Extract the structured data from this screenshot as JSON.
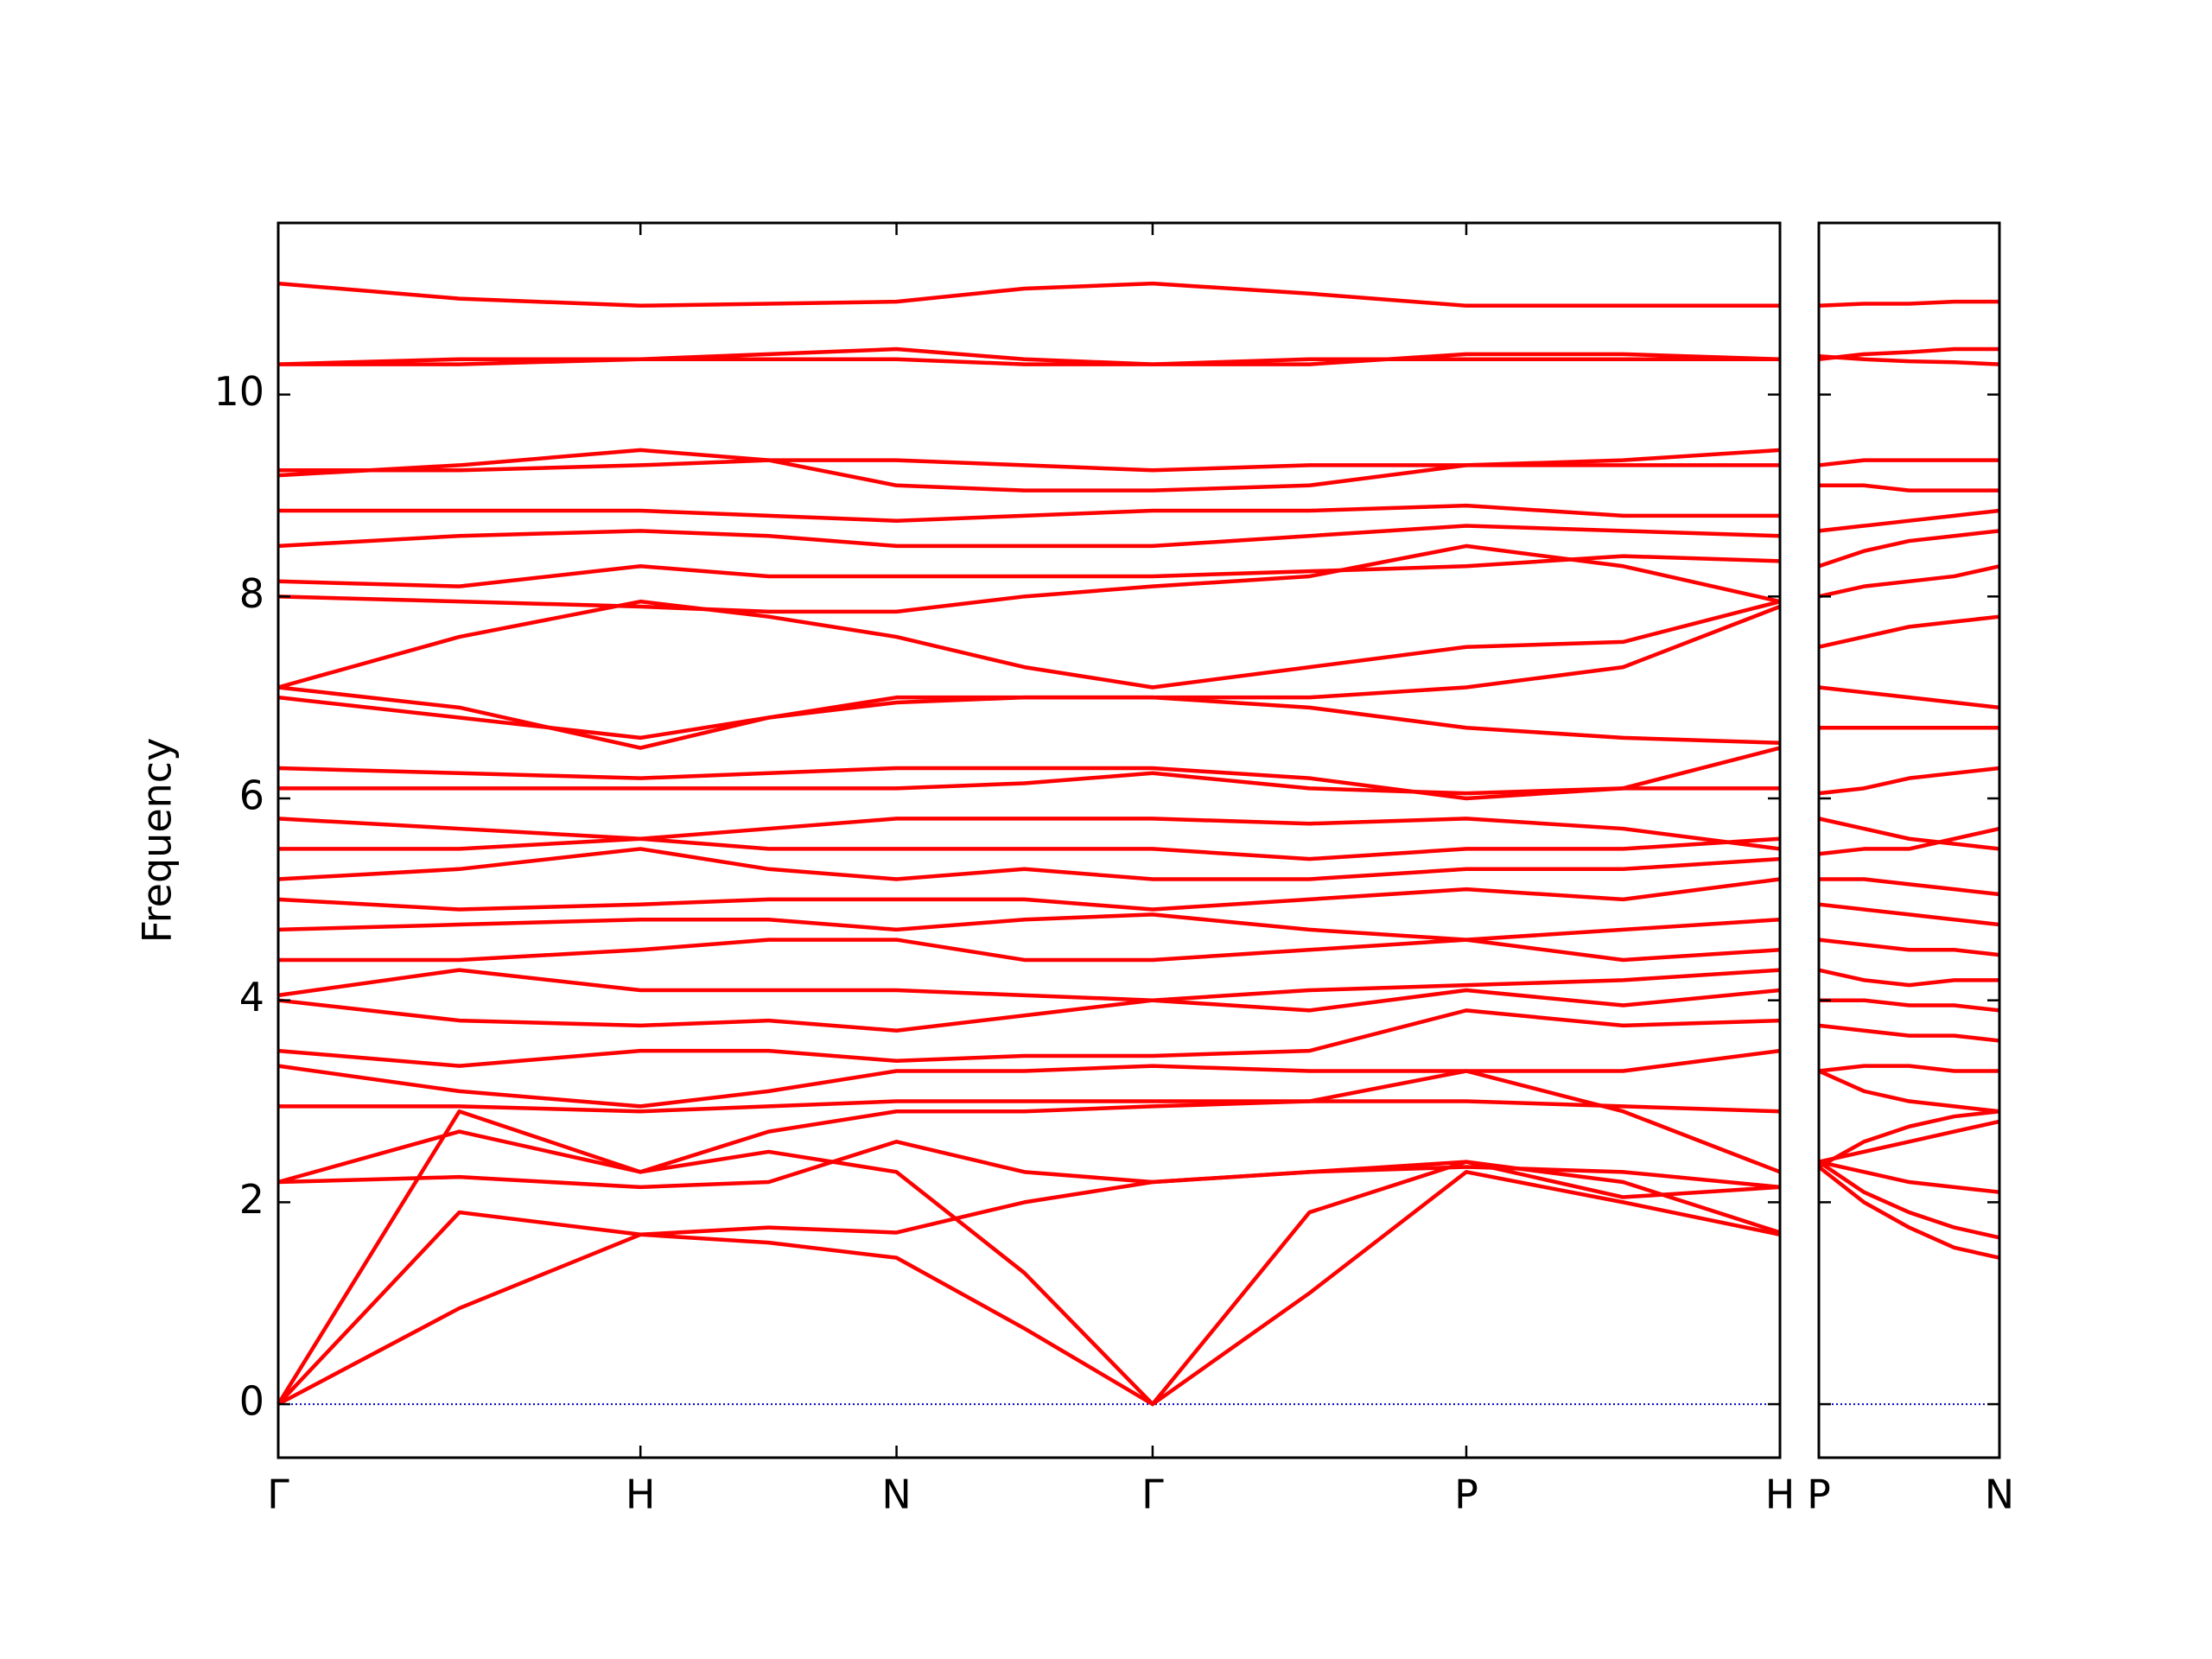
{
  "chart_data": [
    {
      "type": "line",
      "ylabel": "Frequency",
      "color": "#ff0000",
      "hline": 0,
      "hline_color": "#0000cc",
      "xlim": [
        0,
        4.146
      ],
      "ylim": [
        -0.53,
        11.7
      ],
      "yticks": [
        0,
        2,
        4,
        6,
        8,
        10
      ],
      "ytick_labels": true,
      "xticks": [
        {
          "value": 0,
          "label": "Γ"
        },
        {
          "value": 1,
          "label": "H"
        },
        {
          "value": 1.707,
          "label": "N"
        },
        {
          "value": 2.414,
          "label": "Γ"
        },
        {
          "value": 3.28,
          "label": "P"
        },
        {
          "value": 4.146,
          "label": "H"
        }
      ],
      "x": [
        0,
        0.5,
        1,
        1.354,
        1.707,
        2.06,
        2.414,
        2.847,
        3.28,
        3.713,
        4.146
      ],
      "series": [
        {
          "values": [
            0,
            0.95,
            1.68,
            1.6,
            1.45,
            0.75,
            0,
            1.1,
            2.3,
            2.0,
            1.68
          ]
        },
        {
          "values": [
            0,
            1.9,
            1.68,
            1.75,
            1.7,
            2.0,
            2.2,
            2.3,
            2.35,
            2.3,
            2.15
          ]
        },
        {
          "values": [
            0,
            2.9,
            2.3,
            2.5,
            2.3,
            1.3,
            0,
            1.9,
            2.4,
            2.2,
            1.7
          ]
        },
        {
          "values": [
            2.2,
            2.25,
            2.15,
            2.2,
            2.6,
            2.3,
            2.2,
            2.3,
            2.4,
            2.05,
            2.15
          ]
        },
        {
          "values": [
            2.2,
            2.7,
            2.3,
            2.7,
            2.9,
            2.9,
            2.95,
            3.0,
            3.3,
            2.9,
            2.3
          ]
        },
        {
          "values": [
            2.95,
            2.95,
            2.9,
            2.95,
            3.0,
            3.0,
            3.0,
            3.0,
            3.0,
            2.95,
            2.9
          ]
        },
        {
          "values": [
            3.35,
            3.1,
            2.95,
            3.1,
            3.3,
            3.3,
            3.35,
            3.3,
            3.3,
            3.3,
            3.5
          ]
        },
        {
          "values": [
            3.5,
            3.35,
            3.5,
            3.5,
            3.4,
            3.45,
            3.45,
            3.5,
            3.9,
            3.75,
            3.8
          ]
        },
        {
          "values": [
            4.0,
            3.8,
            3.75,
            3.8,
            3.7,
            3.85,
            4.0,
            3.9,
            4.1,
            3.95,
            4.1
          ]
        },
        {
          "values": [
            4.05,
            4.3,
            4.1,
            4.1,
            4.1,
            4.05,
            4.0,
            4.1,
            4.15,
            4.2,
            4.3
          ]
        },
        {
          "values": [
            4.4,
            4.4,
            4.5,
            4.6,
            4.6,
            4.4,
            4.4,
            4.5,
            4.6,
            4.4,
            4.5
          ]
        },
        {
          "values": [
            4.7,
            4.75,
            4.8,
            4.8,
            4.7,
            4.8,
            4.85,
            4.7,
            4.6,
            4.7,
            4.8
          ]
        },
        {
          "values": [
            5.0,
            4.9,
            4.95,
            5.0,
            5.0,
            5.0,
            4.9,
            5.0,
            5.1,
            5.0,
            5.2
          ]
        },
        {
          "values": [
            5.2,
            5.3,
            5.5,
            5.3,
            5.2,
            5.3,
            5.2,
            5.2,
            5.3,
            5.3,
            5.4
          ]
        },
        {
          "values": [
            5.5,
            5.5,
            5.6,
            5.5,
            5.5,
            5.5,
            5.5,
            5.4,
            5.5,
            5.5,
            5.6
          ]
        },
        {
          "values": [
            5.8,
            5.7,
            5.6,
            5.7,
            5.8,
            5.8,
            5.8,
            5.75,
            5.8,
            5.7,
            5.5
          ]
        },
        {
          "values": [
            6.1,
            6.1,
            6.1,
            6.1,
            6.1,
            6.15,
            6.25,
            6.1,
            6.05,
            6.1,
            6.1
          ]
        },
        {
          "values": [
            6.3,
            6.25,
            6.2,
            6.25,
            6.3,
            6.3,
            6.3,
            6.2,
            6.0,
            6.1,
            6.5
          ]
        },
        {
          "values": [
            7.0,
            6.8,
            6.6,
            6.8,
            6.95,
            7.0,
            7.0,
            6.9,
            6.7,
            6.6,
            6.55
          ]
        },
        {
          "values": [
            7.1,
            6.9,
            6.5,
            6.8,
            7.0,
            7.0,
            7.0,
            7.0,
            7.1,
            7.3,
            7.9
          ]
        },
        {
          "values": [
            7.1,
            7.6,
            7.95,
            7.8,
            7.6,
            7.3,
            7.1,
            7.3,
            7.5,
            7.55,
            7.95
          ]
        },
        {
          "values": [
            8.0,
            7.95,
            7.9,
            7.85,
            7.85,
            8.0,
            8.1,
            8.2,
            8.5,
            8.3,
            7.95
          ]
        },
        {
          "values": [
            8.15,
            8.1,
            8.3,
            8.2,
            8.2,
            8.2,
            8.2,
            8.25,
            8.3,
            8.4,
            8.35
          ]
        },
        {
          "values": [
            8.5,
            8.6,
            8.65,
            8.6,
            8.5,
            8.5,
            8.5,
            8.6,
            8.7,
            8.65,
            8.6
          ]
        },
        {
          "values": [
            8.85,
            8.85,
            8.85,
            8.8,
            8.75,
            8.8,
            8.85,
            8.85,
            8.9,
            8.8,
            8.8
          ]
        },
        {
          "values": [
            9.2,
            9.3,
            9.45,
            9.35,
            9.1,
            9.05,
            9.05,
            9.1,
            9.3,
            9.35,
            9.45
          ]
        },
        {
          "values": [
            9.25,
            9.25,
            9.3,
            9.35,
            9.35,
            9.3,
            9.25,
            9.3,
            9.3,
            9.3,
            9.3
          ]
        },
        {
          "values": [
            10.3,
            10.35,
            10.35,
            10.4,
            10.45,
            10.35,
            10.3,
            10.35,
            10.35,
            10.35,
            10.35
          ]
        },
        {
          "values": [
            10.3,
            10.3,
            10.35,
            10.35,
            10.35,
            10.3,
            10.3,
            10.3,
            10.4,
            10.4,
            10.35
          ]
        },
        {
          "values": [
            11.1,
            10.95,
            10.88,
            10.9,
            10.92,
            11.05,
            11.1,
            11.0,
            10.88,
            10.88,
            10.88
          ]
        }
      ]
    },
    {
      "type": "line",
      "color": "#ff0000",
      "hline": 0,
      "hline_color": "#0000cc",
      "xlim": [
        0,
        0.5
      ],
      "ylim": [
        -0.53,
        11.7
      ],
      "yticks": [
        0,
        2,
        4,
        6,
        8,
        10
      ],
      "ytick_labels": false,
      "xticks": [
        {
          "value": 0,
          "label": "P"
        },
        {
          "value": 0.5,
          "label": "N"
        }
      ],
      "x": [
        0,
        0.125,
        0.25,
        0.375,
        0.5
      ],
      "series": [
        {
          "values": [
            2.35,
            2.0,
            1.75,
            1.55,
            1.45
          ]
        },
        {
          "values": [
            2.4,
            2.1,
            1.9,
            1.75,
            1.65
          ]
        },
        {
          "values": [
            2.4,
            2.3,
            2.2,
            2.15,
            2.1
          ]
        },
        {
          "values": [
            2.4,
            2.5,
            2.6,
            2.7,
            2.8
          ]
        },
        {
          "values": [
            2.35,
            2.6,
            2.75,
            2.85,
            2.9
          ]
        },
        {
          "values": [
            3.3,
            3.1,
            3.0,
            2.95,
            2.9
          ]
        },
        {
          "values": [
            3.3,
            3.35,
            3.35,
            3.3,
            3.3
          ]
        },
        {
          "values": [
            3.75,
            3.7,
            3.65,
            3.65,
            3.6
          ]
        },
        {
          "values": [
            4.0,
            4.0,
            3.95,
            3.95,
            3.9
          ]
        },
        {
          "values": [
            4.3,
            4.2,
            4.15,
            4.2,
            4.2
          ]
        },
        {
          "values": [
            4.6,
            4.55,
            4.5,
            4.5,
            4.45
          ]
        },
        {
          "values": [
            4.95,
            4.9,
            4.85,
            4.8,
            4.75
          ]
        },
        {
          "values": [
            5.2,
            5.2,
            5.15,
            5.1,
            5.05
          ]
        },
        {
          "values": [
            5.45,
            5.5,
            5.5,
            5.6,
            5.7
          ]
        },
        {
          "values": [
            5.8,
            5.7,
            5.6,
            5.55,
            5.5
          ]
        },
        {
          "values": [
            6.05,
            6.1,
            6.2,
            6.25,
            6.3
          ]
        },
        {
          "values": [
            6.7,
            6.7,
            6.7,
            6.7,
            6.7
          ]
        },
        {
          "values": [
            7.1,
            7.05,
            7.0,
            6.95,
            6.9
          ]
        },
        {
          "values": [
            7.5,
            7.6,
            7.7,
            7.75,
            7.8
          ]
        },
        {
          "values": [
            8.0,
            8.1,
            8.15,
            8.2,
            8.3
          ]
        },
        {
          "values": [
            8.3,
            8.45,
            8.55,
            8.6,
            8.65
          ]
        },
        {
          "values": [
            8.65,
            8.7,
            8.75,
            8.8,
            8.85
          ]
        },
        {
          "values": [
            9.1,
            9.1,
            9.05,
            9.05,
            9.05
          ]
        },
        {
          "values": [
            9.3,
            9.35,
            9.35,
            9.35,
            9.35
          ]
        },
        {
          "values": [
            10.35,
            10.4,
            10.42,
            10.45,
            10.45
          ]
        },
        {
          "values": [
            10.38,
            10.35,
            10.33,
            10.32,
            10.3
          ]
        },
        {
          "values": [
            10.88,
            10.9,
            10.9,
            10.92,
            10.92
          ]
        }
      ]
    }
  ]
}
